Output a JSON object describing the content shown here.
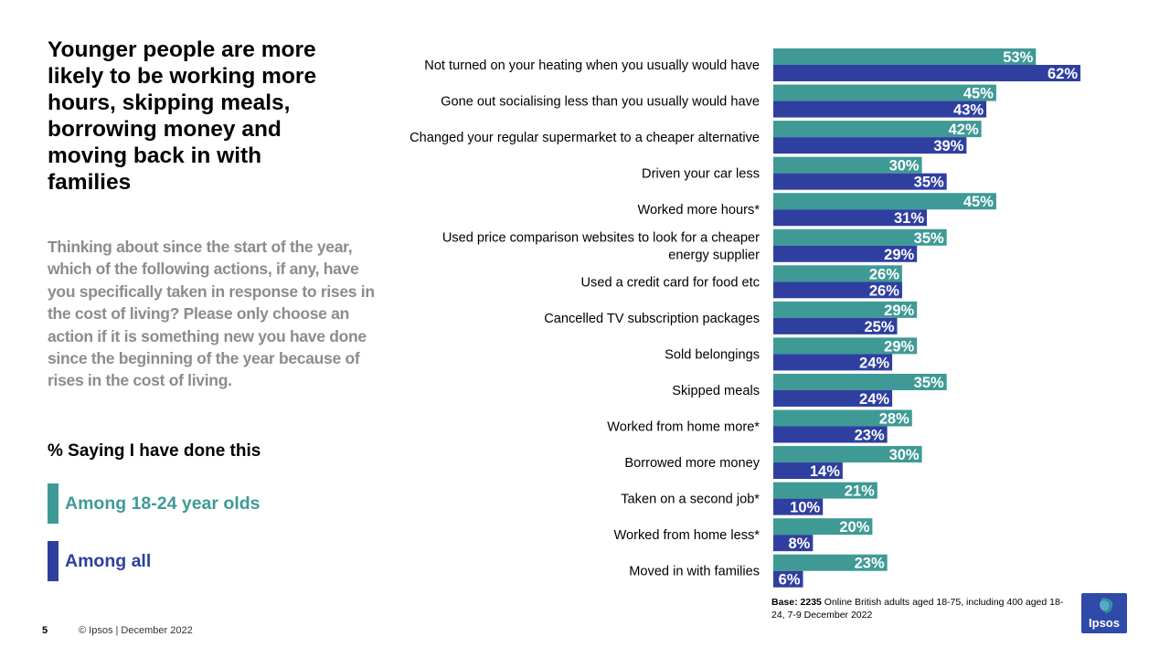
{
  "title": "Younger people are more likely to be working more hours, skipping meals, borrowing money and moving back in with families",
  "question": "Thinking about since the start of the year, which of the following actions, if any, have you specifically taken in response to rises in the cost of living? Please only choose an action if it is something new you have done since the beginning of the year because of rises in the cost of living.",
  "saying_label": "% Saying I have done this",
  "colors": {
    "young": "#3f9a96",
    "all": "#2f3f9f",
    "question_text": "#8c8c8c"
  },
  "legend": [
    {
      "label": "Among 18-24 year olds",
      "color": "#3f9a96"
    },
    {
      "label": "Among all",
      "color": "#2f3f9f"
    }
  ],
  "chart_data": {
    "type": "bar",
    "orientation": "horizontal",
    "title": "% Saying I have done this",
    "categories": [
      "Not turned on your heating when you usually would have",
      "Gone out socialising less than you usually would have",
      "Changed your regular supermarket to a cheaper alternative",
      "Driven your car less",
      "Worked more hours*",
      "Used price comparison websites to look for a cheaper energy supplier",
      "Used a credit card for food etc",
      "Cancelled TV subscription packages",
      "Sold belongings",
      "Skipped meals",
      "Worked from home more*",
      "Borrowed more money",
      "Taken on a second job*",
      "Worked from home less*",
      "Moved in with families"
    ],
    "category_lines": [
      [
        "Not turned on your heating when you usually would have"
      ],
      [
        "Gone out socialising less than you usually would have"
      ],
      [
        "Changed your regular supermarket to a cheaper alternative"
      ],
      [
        "Driven your car less"
      ],
      [
        "Worked more hours*"
      ],
      [
        "Used price comparison websites to look for a cheaper",
        "energy supplier"
      ],
      [
        "Used a credit card for food etc"
      ],
      [
        "Cancelled TV subscription packages"
      ],
      [
        "Sold belongings"
      ],
      [
        "Skipped meals"
      ],
      [
        "Worked from home more*"
      ],
      [
        "Borrowed more money"
      ],
      [
        "Taken on a second job*"
      ],
      [
        "Worked from home less*"
      ],
      [
        "Moved in with families"
      ]
    ],
    "series": [
      {
        "name": "Among 18-24 year olds",
        "values": [
          53,
          45,
          42,
          30,
          45,
          35,
          26,
          29,
          29,
          35,
          28,
          30,
          21,
          20,
          23
        ]
      },
      {
        "name": "Among all",
        "values": [
          62,
          43,
          39,
          35,
          31,
          29,
          26,
          25,
          24,
          24,
          23,
          14,
          10,
          8,
          6
        ]
      }
    ],
    "value_suffix": "%",
    "xlim": [
      0,
      100
    ],
    "grid": false
  },
  "base_note": {
    "label": "Base: 2235",
    "text": " Online British adults aged 18-75, including 400 aged 18-24, 7-9 December 2022"
  },
  "page_number": "5",
  "footer": "© Ipsos | December 2022",
  "logo_text": "Ipsos"
}
